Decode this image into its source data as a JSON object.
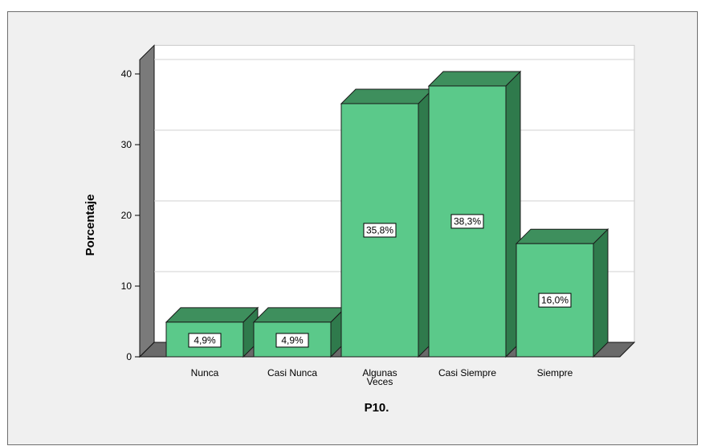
{
  "chart_data": {
    "type": "bar",
    "categories": [
      "Nunca",
      "Casi Nunca",
      "Algunas Veces",
      "Casi Siempre",
      "Siempre"
    ],
    "category_labels": [
      [
        "Nunca"
      ],
      [
        "Casi Nunca"
      ],
      [
        "Algunas",
        "Veces"
      ],
      [
        "Casi Siempre"
      ],
      [
        "Siempre"
      ]
    ],
    "values": [
      4.9,
      4.9,
      35.8,
      38.3,
      16.0
    ],
    "data_labels": [
      "4,9%",
      "4,9%",
      "35,8%",
      "38,3%",
      "16,0%"
    ],
    "xlabel": "P10.",
    "ylabel": "Porcentaje",
    "ylim": [
      0,
      42
    ],
    "yticks": [
      0,
      10,
      20,
      30,
      40
    ],
    "grid": true,
    "style": "3d",
    "colors": {
      "bar_front": "#5bc98a",
      "bar_top": "#3e8f5d",
      "bar_side": "#2f7a4c",
      "wall": "#7a7a7a",
      "floor": "#6a6a6a",
      "plot_bg": "#ffffff",
      "frame_bg": "#f0f0f0"
    }
  }
}
